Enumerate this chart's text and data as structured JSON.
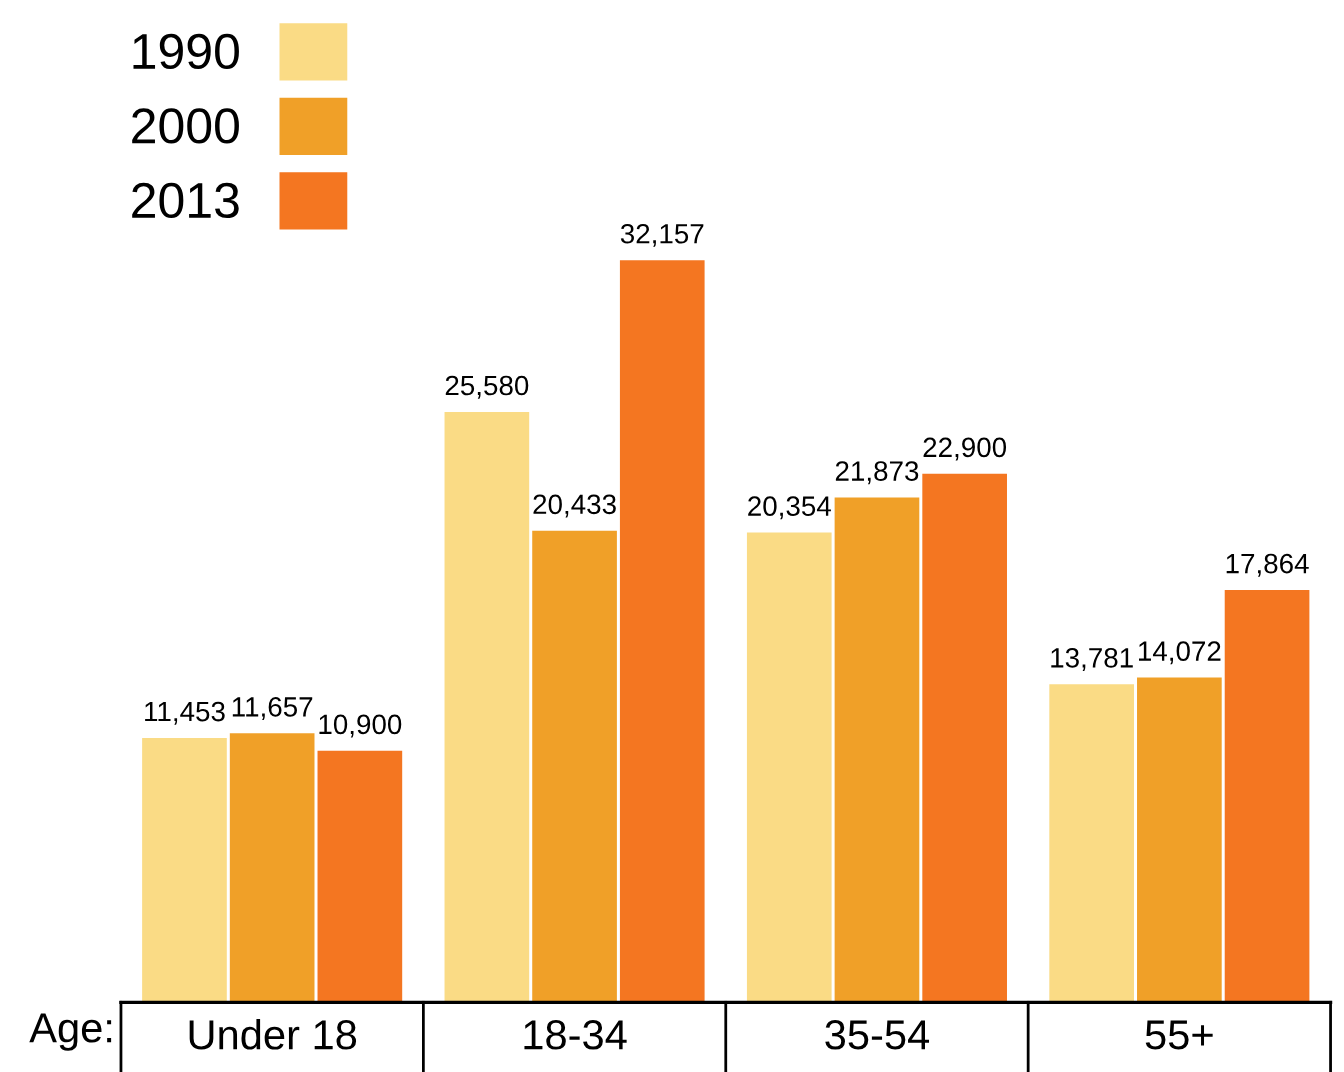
{
  "chart_data": {
    "type": "bar",
    "xlabel": "Age:",
    "categories": [
      "Under 18",
      "18-34",
      "35-54",
      "55+"
    ],
    "series": [
      {
        "name": "1990",
        "color": "#fadb85",
        "values": [
          11453,
          25580,
          20354,
          13781
        ],
        "value_labels": [
          "11,453",
          "25,580",
          "20,354",
          "13,781"
        ]
      },
      {
        "name": "2000",
        "color": "#f0a028",
        "values": [
          11657,
          20433,
          21873,
          14072
        ],
        "value_labels": [
          "11,657",
          "20,433",
          "21,873",
          "14,072"
        ]
      },
      {
        "name": "2013",
        "color": "#f47621",
        "values": [
          10900,
          32157,
          22900,
          17864
        ],
        "value_labels": [
          "10,900",
          "32,157",
          "22,900",
          "17,864"
        ]
      }
    ],
    "legend": "top left"
  }
}
